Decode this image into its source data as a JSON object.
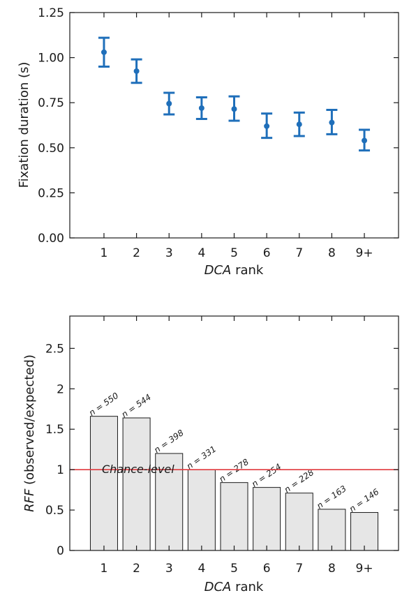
{
  "chart_data": [
    {
      "type": "scatter",
      "title": "",
      "xlabel_italic": "DCA",
      "xlabel_rest": " rank",
      "ylabel": "Fixation duration (s)",
      "categories": [
        "1",
        "2",
        "3",
        "4",
        "5",
        "6",
        "7",
        "8",
        "9+"
      ],
      "yticks": [
        "0.00",
        "0.25",
        "0.50",
        "0.75",
        "1.00",
        "1.25"
      ],
      "ylim": [
        0,
        1.25
      ],
      "series": [
        {
          "values": [
            1.03,
            0.925,
            0.745,
            0.72,
            0.715,
            0.62,
            0.63,
            0.64,
            0.54
          ],
          "error_low": [
            0.95,
            0.86,
            0.685,
            0.66,
            0.65,
            0.555,
            0.565,
            0.575,
            0.485
          ],
          "error_high": [
            1.11,
            0.99,
            0.805,
            0.78,
            0.785,
            0.69,
            0.695,
            0.71,
            0.6
          ]
        }
      ],
      "grid": false,
      "colors": {
        "marker": "#1f6fba"
      }
    },
    {
      "type": "bar",
      "title": "",
      "xlabel_italic": "DCA",
      "xlabel_rest": " rank",
      "ylabel_italic": "RFF",
      "ylabel_rest": " (observed/expected)",
      "categories": [
        "1",
        "2",
        "3",
        "4",
        "5",
        "6",
        "7",
        "8",
        "9+"
      ],
      "yticks": [
        "0",
        "0.5",
        "1",
        "1.5",
        "2",
        "2.5"
      ],
      "ylim": [
        0,
        2.9
      ],
      "values": [
        1.66,
        1.64,
        1.2,
        1.0,
        0.84,
        0.78,
        0.71,
        0.51,
        0.47
      ],
      "n_labels": [
        "n = 550",
        "n = 544",
        "n = 398",
        "n = 331",
        "n = 278",
        "n = 254",
        "n = 228",
        "n = 163",
        "n = 146"
      ],
      "reference_line": {
        "value": 1,
        "label": "Chance-level"
      },
      "grid": false,
      "colors": {
        "bar_fill": "#e6e6e6",
        "bar_stroke": "#1a1a1a",
        "reference_line": "#e0393e"
      }
    }
  ]
}
